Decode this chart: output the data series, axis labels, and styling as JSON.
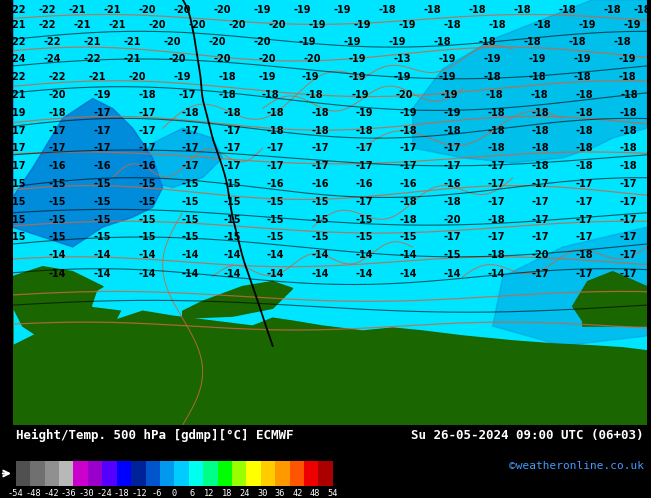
{
  "title_left": "Height/Temp. 500 hPa [gdmp][°C] ECMWF",
  "title_right": "Su 26-05-2024 09:00 UTC (06+03)",
  "credit": "©weatheronline.co.uk",
  "colorbar_ticks": [
    -54,
    -48,
    -42,
    -36,
    -30,
    -24,
    -18,
    -12,
    -6,
    0,
    6,
    12,
    18,
    24,
    30,
    36,
    42,
    48,
    54
  ],
  "colorbar_colors": [
    "#606060",
    "#787878",
    "#909090",
    "#b0b0b0",
    "#cc00cc",
    "#9900cc",
    "#6600ff",
    "#0000ff",
    "#003399",
    "#0066cc",
    "#0099ff",
    "#00ccff",
    "#00ffdd",
    "#00ff88",
    "#00ff00",
    "#99ff00",
    "#ffff00",
    "#ffcc00",
    "#ff9900",
    "#ff6600",
    "#ff0000",
    "#cc0000"
  ],
  "bg_cyan": "#00e5ff",
  "bg_blue": "#00aaee",
  "bg_darkblue": "#0066cc",
  "land_green": "#1a6600",
  "sea_cyan": "#00ddff",
  "border_color": "#cc6644",
  "contour_black": "#000000",
  "contour_salmon": "#cc6644",
  "fig_width": 6.34,
  "fig_height": 4.9,
  "dpi": 100
}
